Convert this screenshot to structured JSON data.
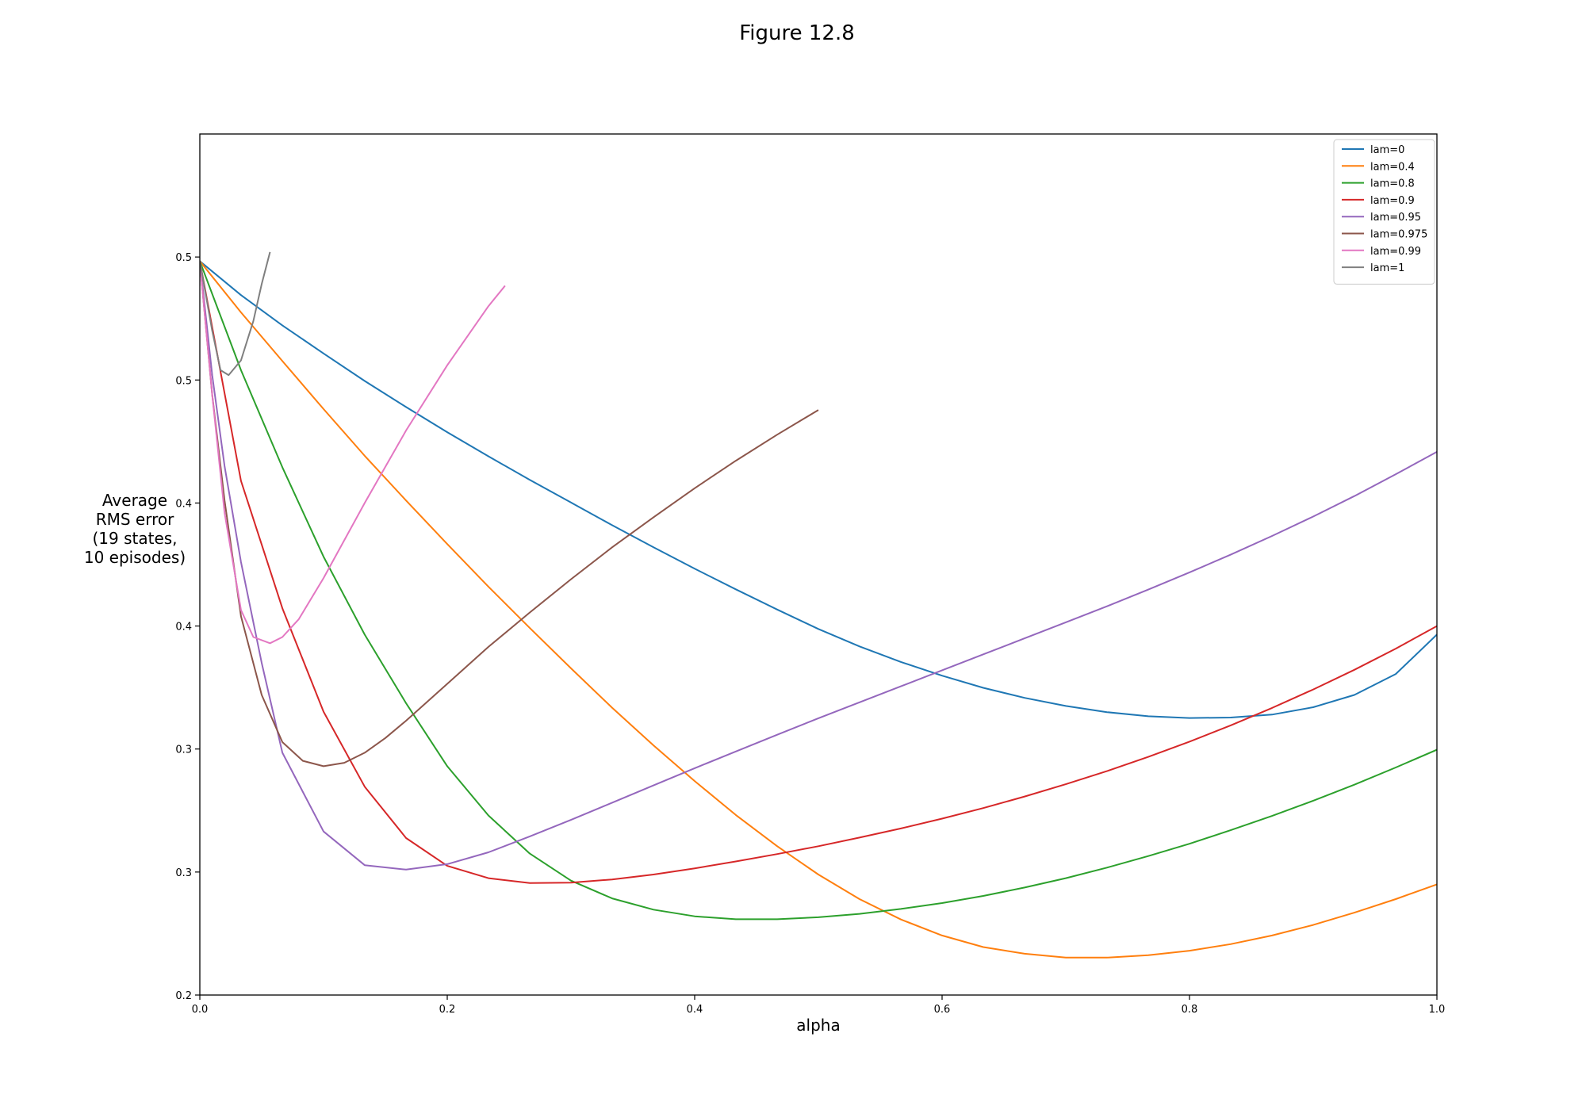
{
  "chart_data": {
    "type": "line",
    "title": "Figure 12.8",
    "xlabel": "alpha",
    "ylabel_lines": [
      "Average",
      "RMS error",
      "(19 states,",
      "10 episodes)"
    ],
    "xlim": [
      0,
      1
    ],
    "ylim": [
      0.2,
      0.55
    ],
    "x_ticks": [
      {
        "value": 0.0,
        "label": "0.0"
      },
      {
        "value": 0.2,
        "label": "0.2"
      },
      {
        "value": 0.4,
        "label": "0.4"
      },
      {
        "value": 0.6,
        "label": "0.6"
      },
      {
        "value": 0.8,
        "label": "0.8"
      },
      {
        "value": 1.0,
        "label": "1.0"
      }
    ],
    "y_ticks": [
      {
        "value": 0.2,
        "label": "0.2"
      },
      {
        "value": 0.25,
        "label": "0.3"
      },
      {
        "value": 0.3,
        "label": "0.3"
      },
      {
        "value": 0.35,
        "label": "0.4"
      },
      {
        "value": 0.4,
        "label": "0.4"
      },
      {
        "value": 0.45,
        "label": "0.5"
      },
      {
        "value": 0.5,
        "label": "0.5"
      }
    ],
    "grid": false,
    "legend_position": "top-right",
    "series": [
      {
        "name": "lam=0",
        "color": "#1f77b4",
        "x": [
          0,
          0.0333,
          0.0667,
          0.1,
          0.1333,
          0.1667,
          0.2,
          0.2333,
          0.2667,
          0.3,
          0.3333,
          0.3667,
          0.4,
          0.4333,
          0.4667,
          0.5,
          0.5333,
          0.5667,
          0.6,
          0.6333,
          0.6667,
          0.7,
          0.7333,
          0.7667,
          0.8,
          0.8333,
          0.8667,
          0.9,
          0.9333,
          0.9667,
          1.0
        ],
        "y": [
          0.4983,
          0.4845,
          0.4722,
          0.4608,
          0.4496,
          0.439,
          0.4288,
          0.419,
          0.4094,
          0.4002,
          0.391,
          0.382,
          0.3733,
          0.3649,
          0.3567,
          0.3488,
          0.3417,
          0.3354,
          0.3298,
          0.3249,
          0.3208,
          0.3175,
          0.315,
          0.3133,
          0.3126,
          0.3128,
          0.314,
          0.317,
          0.322,
          0.3305,
          0.3465
        ]
      },
      {
        "name": "lam=0.4",
        "color": "#ff7f0e",
        "x": [
          0,
          0.0333,
          0.0667,
          0.1,
          0.1333,
          0.1667,
          0.2,
          0.2333,
          0.2667,
          0.3,
          0.3333,
          0.3667,
          0.4,
          0.4333,
          0.4667,
          0.5,
          0.5333,
          0.5667,
          0.6,
          0.6333,
          0.6667,
          0.7,
          0.7333,
          0.7667,
          0.8,
          0.8333,
          0.8667,
          0.9,
          0.9333,
          0.9667,
          1.0
        ],
        "y": [
          0.4983,
          0.4775,
          0.4577,
          0.4382,
          0.4192,
          0.401,
          0.3833,
          0.366,
          0.3492,
          0.3328,
          0.3168,
          0.3015,
          0.287,
          0.2732,
          0.2605,
          0.249,
          0.239,
          0.2307,
          0.2242,
          0.2195,
          0.2168,
          0.2152,
          0.2152,
          0.2162,
          0.218,
          0.2207,
          0.2242,
          0.2285,
          0.2335,
          0.239,
          0.245
        ]
      },
      {
        "name": "lam=0.8",
        "color": "#2ca02c",
        "x": [
          0,
          0.0333,
          0.0667,
          0.1,
          0.1333,
          0.1667,
          0.2,
          0.2333,
          0.2667,
          0.3,
          0.3333,
          0.3667,
          0.4,
          0.4333,
          0.4667,
          0.5,
          0.5333,
          0.5667,
          0.6,
          0.6333,
          0.6667,
          0.7,
          0.7333,
          0.7667,
          0.8,
          0.8333,
          0.8667,
          0.9,
          0.9333,
          0.9667,
          1.0
        ],
        "y": [
          0.4983,
          0.454,
          0.4145,
          0.3782,
          0.3465,
          0.3186,
          0.293,
          0.273,
          0.2575,
          0.2465,
          0.2393,
          0.2347,
          0.232,
          0.2308,
          0.2308,
          0.2316,
          0.233,
          0.235,
          0.2374,
          0.2403,
          0.2437,
          0.2475,
          0.2518,
          0.2565,
          0.2615,
          0.267,
          0.2728,
          0.279,
          0.2855,
          0.2925,
          0.2997
        ]
      },
      {
        "name": "lam=0.9",
        "color": "#d62728",
        "x": [
          0,
          0.0333,
          0.0667,
          0.1,
          0.1333,
          0.1667,
          0.2,
          0.2333,
          0.2667,
          0.3,
          0.3333,
          0.3667,
          0.4,
          0.4333,
          0.4667,
          0.5,
          0.5333,
          0.5667,
          0.6,
          0.6333,
          0.6667,
          0.7,
          0.7333,
          0.7667,
          0.8,
          0.8333,
          0.8667,
          0.9,
          0.9333,
          0.9667,
          1.0
        ],
        "y": [
          0.4983,
          0.409,
          0.3572,
          0.3152,
          0.2847,
          0.2638,
          0.2525,
          0.2475,
          0.2455,
          0.2457,
          0.247,
          0.249,
          0.2515,
          0.2543,
          0.2573,
          0.2605,
          0.264,
          0.2677,
          0.2717,
          0.276,
          0.2807,
          0.2857,
          0.291,
          0.2968,
          0.303,
          0.3096,
          0.3167,
          0.3242,
          0.3322,
          0.3408,
          0.35
        ]
      },
      {
        "name": "lam=0.95",
        "color": "#9467bd",
        "x": [
          0,
          0.01,
          0.02,
          0.0333,
          0.05,
          0.0667,
          0.1,
          0.1333,
          0.1667,
          0.2,
          0.2333,
          0.2667,
          0.3,
          0.3333,
          0.3667,
          0.4,
          0.4333,
          0.4667,
          0.5,
          0.5333,
          0.5667,
          0.6,
          0.6333,
          0.6667,
          0.7,
          0.7333,
          0.7667,
          0.8,
          0.8333,
          0.8667,
          0.9,
          0.9333,
          0.9667,
          1.0
        ],
        "y": [
          0.4983,
          0.452,
          0.415,
          0.376,
          0.335,
          0.2985,
          0.2665,
          0.2528,
          0.251,
          0.2532,
          0.258,
          0.2645,
          0.2712,
          0.2782,
          0.2852,
          0.2922,
          0.299,
          0.3058,
          0.3125,
          0.319,
          0.3255,
          0.332,
          0.3385,
          0.345,
          0.3515,
          0.358,
          0.3648,
          0.3718,
          0.379,
          0.3866,
          0.3945,
          0.4028,
          0.4117,
          0.4208
        ]
      },
      {
        "name": "lam=0.975",
        "color": "#8c564b",
        "x": [
          0,
          0.01,
          0.02,
          0.0333,
          0.05,
          0.0667,
          0.0833,
          0.1,
          0.1167,
          0.1333,
          0.15,
          0.1667,
          0.2,
          0.2333,
          0.2667,
          0.3,
          0.3333,
          0.3667,
          0.4,
          0.4333,
          0.4667,
          0.5
        ],
        "y": [
          0.4983,
          0.444,
          0.401,
          0.354,
          0.322,
          0.3028,
          0.2952,
          0.293,
          0.2944,
          0.2985,
          0.3045,
          0.3115,
          0.3265,
          0.3415,
          0.3555,
          0.369,
          0.382,
          0.3942,
          0.406,
          0.4172,
          0.4278,
          0.4378
        ]
      },
      {
        "name": "lam=0.99",
        "color": "#e377c2",
        "x": [
          0,
          0.01,
          0.02,
          0.0333,
          0.0433,
          0.0567,
          0.0667,
          0.08,
          0.1,
          0.1333,
          0.1667,
          0.2,
          0.2333,
          0.2467
        ],
        "y": [
          0.4983,
          0.444,
          0.396,
          0.3565,
          0.3455,
          0.343,
          0.3455,
          0.3528,
          0.3695,
          0.4,
          0.4295,
          0.456,
          0.48,
          0.4883
        ]
      },
      {
        "name": "lam=1",
        "color": "#7f7f7f",
        "x": [
          0,
          0.01,
          0.0167,
          0.0233,
          0.0333,
          0.0433,
          0.05,
          0.0567
        ],
        "y": [
          0.4983,
          0.47,
          0.454,
          0.452,
          0.458,
          0.474,
          0.489,
          0.502
        ]
      }
    ]
  }
}
